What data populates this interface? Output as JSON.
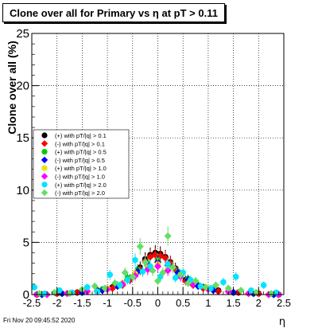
{
  "footer_timestamp": "Fri Nov 20 09:45:52 2020",
  "chart_data": {
    "type": "scatter",
    "title": "Clone  over all for Primary vs  η at pT > 0.11",
    "xlabel": "η",
    "ylabel": "Clone  over all (%)",
    "xlim": [
      -2.5,
      2.5
    ],
    "ylim": [
      0,
      25
    ],
    "xticks": [
      "-2.5",
      "-2",
      "-1.5",
      "-1",
      "-0.5",
      "0",
      "0.5",
      "1",
      "1.5",
      "2",
      "2.5"
    ],
    "yticks": [
      "0",
      "5",
      "10",
      "15",
      "20",
      "25"
    ],
    "grid": true,
    "legend_position": "left-middle",
    "series": [
      {
        "name": "(+) with pT/|q| > 0.1",
        "color": "#000000",
        "x": [
          -2.4,
          -2.0,
          -1.6,
          -1.2,
          -0.9,
          -0.7,
          -0.55,
          -0.45,
          -0.35,
          -0.25,
          -0.15,
          -0.05,
          0.05,
          0.15,
          0.25,
          0.35,
          0.45,
          0.55,
          0.7,
          0.9,
          1.2,
          1.6,
          2.0,
          2.4
        ],
        "y": [
          0.0,
          0.1,
          0.2,
          0.4,
          0.7,
          1.0,
          1.5,
          2.0,
          2.6,
          3.4,
          3.8,
          4.0,
          3.9,
          3.6,
          3.1,
          2.5,
          1.9,
          1.4,
          1.0,
          0.7,
          0.4,
          0.2,
          0.1,
          0.0
        ]
      },
      {
        "name": "(-) with pT/|q| > 0.1",
        "color": "#ff0000",
        "x": [
          -2.4,
          -2.0,
          -1.6,
          -1.2,
          -0.9,
          -0.7,
          -0.55,
          -0.45,
          -0.35,
          -0.25,
          -0.15,
          -0.05,
          0.05,
          0.15,
          0.25,
          0.35,
          0.45,
          0.55,
          0.7,
          0.9,
          1.2,
          1.6,
          2.0,
          2.4
        ],
        "y": [
          0.0,
          0.1,
          0.2,
          0.3,
          0.6,
          0.9,
          1.4,
          1.9,
          2.4,
          3.2,
          3.6,
          3.8,
          3.7,
          3.5,
          3.0,
          2.4,
          1.8,
          1.3,
          0.9,
          0.6,
          0.3,
          0.2,
          0.1,
          0.0
        ]
      },
      {
        "name": "(+) with pT/|q| > 0.5",
        "color": "#00cc00",
        "x": [
          -2.3,
          -1.9,
          -1.5,
          -1.1,
          -0.8,
          -0.6,
          -0.4,
          -0.2,
          0.0,
          0.2,
          0.4,
          0.6,
          0.8,
          1.1,
          1.5,
          1.9,
          2.3
        ],
        "y": [
          0.0,
          0.1,
          0.2,
          0.5,
          0.9,
          1.6,
          2.4,
          3.0,
          3.3,
          2.9,
          2.2,
          1.5,
          0.9,
          0.5,
          0.2,
          0.1,
          0.0
        ]
      },
      {
        "name": "(-) with pT/|q| > 0.5",
        "color": "#0000ff",
        "x": [
          -2.3,
          -1.9,
          -1.5,
          -1.1,
          -0.8,
          -0.6,
          -0.4,
          -0.2,
          0.0,
          0.2,
          0.4,
          0.6,
          0.8,
          1.1,
          1.5,
          1.9,
          2.3
        ],
        "y": [
          0.0,
          0.1,
          0.2,
          0.4,
          0.8,
          1.4,
          2.2,
          2.8,
          3.1,
          2.8,
          2.1,
          1.4,
          0.8,
          0.4,
          0.2,
          0.1,
          0.0
        ]
      },
      {
        "name": "(+) with pT/|q| > 1.0",
        "color": "#e6e600",
        "x": [
          -2.2,
          -1.8,
          -1.4,
          -1.0,
          -0.7,
          -0.45,
          -0.2,
          0.0,
          0.2,
          0.45,
          0.7,
          1.0,
          1.4,
          1.8,
          2.2
        ],
        "y": [
          0.0,
          0.1,
          0.3,
          0.6,
          1.1,
          2.0,
          2.6,
          2.9,
          2.5,
          1.9,
          1.1,
          0.6,
          0.3,
          0.1,
          0.0
        ]
      },
      {
        "name": "(-) with pT/|q| > 1.0",
        "color": "#ff00ff",
        "x": [
          -2.4,
          -2.2,
          -1.8,
          -1.4,
          -1.0,
          -0.7,
          -0.45,
          -0.2,
          0.0,
          0.2,
          0.45,
          0.7,
          1.0,
          1.4,
          1.8,
          2.2,
          2.4
        ],
        "y": [
          0.0,
          0.0,
          0.1,
          0.3,
          0.5,
          1.0,
          1.8,
          2.4,
          2.7,
          2.3,
          1.7,
          1.0,
          0.5,
          0.3,
          0.1,
          0.0,
          0.0
        ]
      },
      {
        "name": "(+) with pT/|q| > 2.0",
        "color": "#00e5ff",
        "x": [
          -2.45,
          -2.25,
          -1.95,
          -1.7,
          -1.4,
          -1.2,
          -0.95,
          -0.75,
          -0.6,
          -0.45,
          -0.3,
          -0.15,
          0.05,
          0.2,
          0.35,
          0.5,
          0.65,
          0.85,
          1.05,
          1.3,
          1.55,
          1.85,
          2.1,
          2.35
        ],
        "y": [
          0.7,
          0.1,
          0.4,
          0.2,
          0.7,
          0.3,
          1.9,
          0.9,
          1.4,
          3.3,
          2.2,
          2.7,
          1.7,
          2.9,
          1.6,
          2.1,
          1.4,
          0.8,
          0.6,
          1.2,
          1.7,
          0.4,
          0.9,
          0.2
        ]
      },
      {
        "name": "(-) with pT/|q| > 2.0",
        "color": "#66dd66",
        "x": [
          -2.35,
          -2.05,
          -1.75,
          -1.5,
          -1.25,
          -1.05,
          -0.85,
          -0.65,
          -0.5,
          -0.35,
          -0.25,
          -0.1,
          0.0,
          0.1,
          0.2,
          0.3,
          0.45,
          0.6,
          0.75,
          0.95,
          1.15,
          1.4,
          1.65,
          1.95,
          2.25
        ],
        "y": [
          0.1,
          0.2,
          0.1,
          0.5,
          0.8,
          0.6,
          1.1,
          2.1,
          1.7,
          4.6,
          3.1,
          2.3,
          1.3,
          2.1,
          5.6,
          2.6,
          1.9,
          1.1,
          1.3,
          0.7,
          0.9,
          0.6,
          0.4,
          0.2,
          0.1
        ]
      }
    ]
  }
}
